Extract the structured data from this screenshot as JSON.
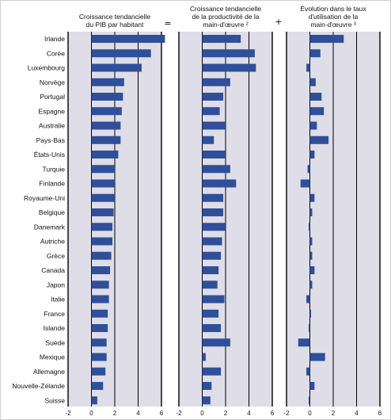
{
  "chart_data": {
    "type": "bar",
    "orientation": "horizontal",
    "operators": [
      "=",
      "+"
    ],
    "xlim": [
      -2,
      6
    ],
    "xticks": [
      "-2",
      "0",
      "2",
      "4",
      "6"
    ],
    "grid": true,
    "categories": [
      "Irlande",
      "Corée",
      "Luxembourg",
      "Norvège",
      "Portugal",
      "Espagne",
      "Australie",
      "Pays-Bas",
      "États-Unis",
      "Turquie",
      "Finlande",
      "Royaume-Uni",
      "Belgique",
      "Danemark",
      "Autriche",
      "Grèce",
      "Canada",
      "Japon",
      "Italie",
      "France",
      "Islande",
      "Suède",
      "Mexique",
      "Allemagne",
      "Nouvelle-Zélande",
      "Suisse"
    ],
    "panels": [
      {
        "title": [
          "Croissance tendancielle",
          "du PIB par habitant"
        ],
        "values": [
          6.3,
          5.1,
          4.3,
          2.8,
          2.7,
          2.6,
          2.5,
          2.5,
          2.3,
          2.0,
          2.0,
          2.0,
          1.9,
          1.8,
          1.8,
          1.7,
          1.6,
          1.5,
          1.5,
          1.4,
          1.4,
          1.3,
          1.3,
          1.2,
          1.0,
          0.5
        ]
      },
      {
        "title": [
          "Croissance tendancielle",
          "de la productivité de la",
          "main-d'œuvre ²"
        ],
        "values": [
          3.3,
          4.5,
          4.6,
          2.4,
          1.8,
          1.5,
          2.0,
          1.0,
          2.0,
          2.4,
          2.9,
          1.8,
          1.8,
          2.0,
          1.7,
          1.6,
          1.4,
          1.3,
          1.9,
          1.4,
          1.6,
          2.4,
          0.3,
          1.6,
          0.8,
          0.7
        ]
      },
      {
        "title": [
          "Évolution dans le taux",
          "d'utilisation de la",
          "main-d'œuvre ³"
        ],
        "values": [
          2.9,
          0.9,
          -0.3,
          0.5,
          1.0,
          1.2,
          0.6,
          1.6,
          0.4,
          -0.2,
          -0.8,
          0.4,
          0.2,
          -0.1,
          0.2,
          0.2,
          0.4,
          0.2,
          -0.3,
          0.1,
          -0.1,
          -1.0,
          1.3,
          -0.3,
          0.4,
          -0.1
        ]
      }
    ]
  },
  "colors": {
    "bar": "#2f4f9a",
    "panel_background": "#dedde8",
    "gridline": "#000000",
    "text": "#111111"
  }
}
